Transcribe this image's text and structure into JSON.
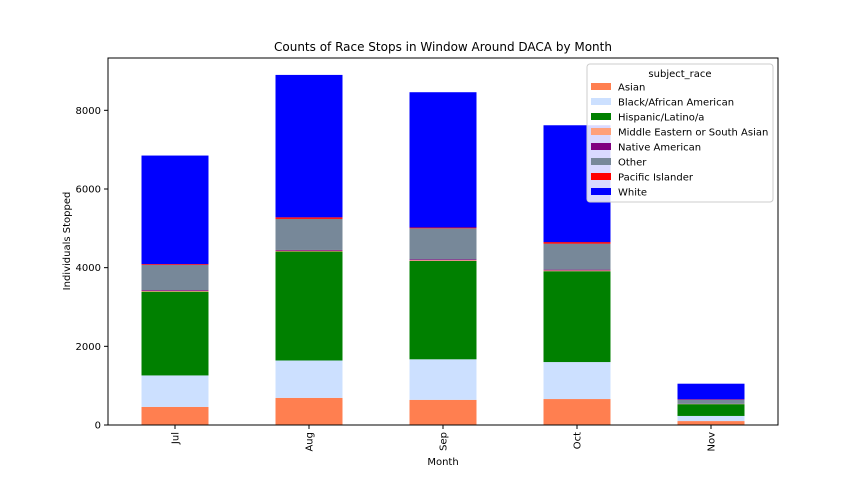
{
  "chart_data": {
    "type": "bar",
    "stacked": true,
    "title": "Counts of Race Stops in Window Around DACA by Month",
    "xlabel": "Month",
    "ylabel": "Individuals Stopped",
    "categories": [
      "Jul",
      "Aug",
      "Sep",
      "Oct",
      "Nov"
    ],
    "ylim": [
      0,
      9330
    ],
    "yticks": [
      0,
      2000,
      4000,
      6000,
      8000
    ],
    "grid": false,
    "legend": {
      "title": "subject_race",
      "placement": "top-right"
    },
    "series": [
      {
        "name": "Asian",
        "color": "#ff7f50",
        "values": [
          460,
          690,
          640,
          660,
          100
        ]
      },
      {
        "name": "Black/African American",
        "color": "#cce0ff",
        "values": [
          800,
          950,
          1030,
          940,
          130
        ]
      },
      {
        "name": "Hispanic/Latino/a",
        "color": "#008000",
        "values": [
          2130,
          2770,
          2500,
          2310,
          300
        ]
      },
      {
        "name": "Middle Eastern or South Asian",
        "color": "#ffa07a",
        "values": [
          20,
          20,
          20,
          20,
          5
        ]
      },
      {
        "name": "Native American",
        "color": "#800080",
        "values": [
          20,
          20,
          20,
          20,
          5
        ]
      },
      {
        "name": "Other",
        "color": "#778899",
        "values": [
          640,
          790,
          790,
          660,
          100
        ]
      },
      {
        "name": "Pacific Islander",
        "color": "#ff0000",
        "values": [
          20,
          40,
          20,
          40,
          10
        ]
      },
      {
        "name": "White",
        "color": "#0000ff",
        "values": [
          2760,
          3620,
          3440,
          2970,
          400
        ]
      }
    ]
  }
}
